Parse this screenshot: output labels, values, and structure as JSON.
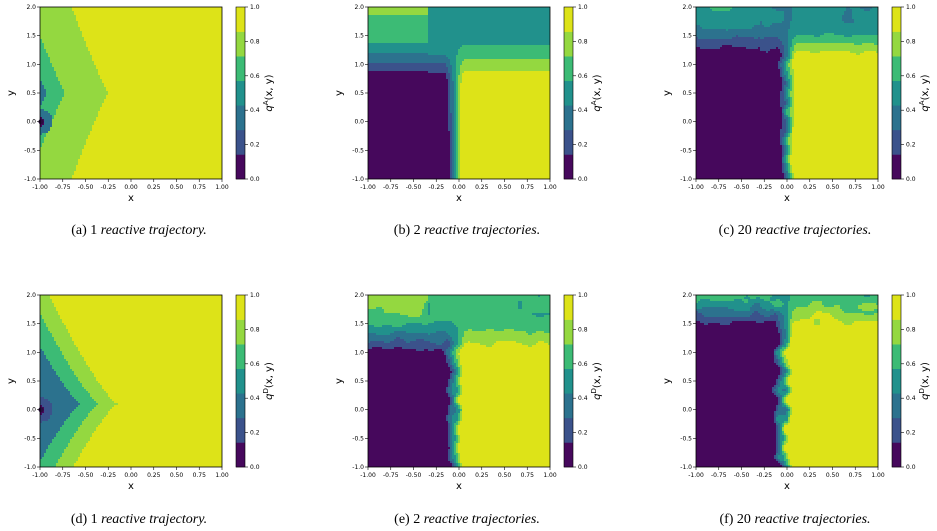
{
  "chart_data": [
    {
      "type": "heatmap",
      "caption_label": "(a)",
      "caption_count": "1",
      "caption_text": "reactive trajectory.",
      "xlabel": "x",
      "ylabel": "y",
      "colorbar_label": "q^A(x, y)",
      "colorbar_sym": "q",
      "colorbar_sup": "A",
      "colorbar_args": "(x, y)",
      "xlim": [
        -1.0,
        1.0
      ],
      "ylim": [
        -1.0,
        2.0
      ],
      "xticks": [
        "-1.00",
        "-0.75",
        "-0.50",
        "-0.25",
        "0.00",
        "0.25",
        "0.50",
        "0.75",
        "1.00"
      ],
      "yticks": [
        "-1.0",
        "-0.5",
        "0.0",
        "0.5",
        "1.0",
        "1.5",
        "2.0"
      ],
      "colorbar_ticks": [
        "0.0",
        "0.2",
        "0.4",
        "0.6",
        "0.8",
        "1.0"
      ],
      "colormap": "viridis",
      "marker": [
        -1.0,
        0.0
      ],
      "field": {
        "kind": "left_arrow",
        "cx": -0.05,
        "cy": 0.5,
        "widen": 0.28,
        "shape": 0.9,
        "tip_x": -1.0,
        "tip_y": 0.0,
        "bands": [
          {
            "x": -0.92,
            "level": 0.4
          },
          {
            "x": -0.72,
            "level": 0.6
          },
          {
            "x": -0.25,
            "level": 0.8
          }
        ]
      }
    },
    {
      "type": "heatmap",
      "caption_label": "(b)",
      "caption_count": "2",
      "caption_text": "reactive trajectories.",
      "xlabel": "x",
      "ylabel": "y",
      "colorbar_label": "q^A(x, y)",
      "colorbar_sym": "q",
      "colorbar_sup": "A",
      "colorbar_args": "(x, y)",
      "xlim": [
        -1.0,
        1.0
      ],
      "ylim": [
        -1.0,
        2.0
      ],
      "xticks": [
        "-1.00",
        "-0.75",
        "-0.50",
        "-0.25",
        "0.00",
        "0.25",
        "0.50",
        "0.75",
        "1.00"
      ],
      "yticks": [
        "-1.0",
        "-0.5",
        "0.0",
        "0.5",
        "1.0",
        "1.5",
        "2.0"
      ],
      "colorbar_ticks": [
        "0.0",
        "0.2",
        "0.4",
        "0.6",
        "0.8",
        "1.0"
      ],
      "colormap": "viridis",
      "field": {
        "kind": "y_split",
        "stem_x": -0.05,
        "stem_top": 0.7,
        "top_level": 0.55,
        "noise": 0.0
      }
    },
    {
      "type": "heatmap",
      "caption_label": "(c)",
      "caption_count": "20",
      "caption_text": "reactive trajectories.",
      "xlabel": "x",
      "ylabel": "y",
      "colorbar_label": "q^A(x, y)",
      "colorbar_sym": "q",
      "colorbar_sup": "A",
      "colorbar_args": "(x, y)",
      "xlim": [
        -1.0,
        1.0
      ],
      "ylim": [
        -1.0,
        2.0
      ],
      "xticks": [
        "-1.00",
        "-0.75",
        "-0.50",
        "-0.25",
        "0.00",
        "0.25",
        "0.50",
        "0.75",
        "1.00"
      ],
      "yticks": [
        "-1.0",
        "-0.5",
        "0.0",
        "0.5",
        "1.0",
        "1.5",
        "2.0"
      ],
      "colorbar_ticks": [
        "0.0",
        "0.2",
        "0.4",
        "0.6",
        "0.8",
        "1.0"
      ],
      "colormap": "viridis",
      "field": {
        "kind": "y_split",
        "stem_x": 0.0,
        "stem_top": 1.05,
        "top_level": 0.45,
        "noise": 0.04
      }
    },
    {
      "type": "heatmap",
      "caption_label": "(d)",
      "caption_count": "1",
      "caption_text": "reactive trajectory.",
      "xlabel": "x",
      "ylabel": "y",
      "colorbar_label": "q^D(x, y)",
      "colorbar_sym": "q",
      "colorbar_sup": "D",
      "colorbar_args": "(x, y)",
      "xlim": [
        -1.0,
        1.0
      ],
      "ylim": [
        -1.0,
        2.0
      ],
      "xticks": [
        "-1.00",
        "-0.75",
        "-0.50",
        "-0.25",
        "0.00",
        "0.25",
        "0.50",
        "0.75",
        "1.00"
      ],
      "yticks": [
        "-1.0",
        "-0.5",
        "0.0",
        "0.5",
        "1.0",
        "1.5",
        "2.0"
      ],
      "colorbar_ticks": [
        "0.0",
        "0.2",
        "0.4",
        "0.6",
        "0.8",
        "1.0"
      ],
      "colormap": "viridis",
      "marker": [
        -1.0,
        0.0
      ],
      "field": {
        "kind": "left_arrow",
        "cx": 0.1,
        "cy": 0.1,
        "widen": 0.45,
        "shape": 0.8,
        "tip_x": -1.0,
        "tip_y": 0.0,
        "bands": [
          {
            "x": -0.95,
            "level": 0.2
          },
          {
            "x": -0.55,
            "level": 0.4
          },
          {
            "x": -0.35,
            "level": 0.6
          },
          {
            "x": -0.15,
            "level": 0.8
          }
        ]
      }
    },
    {
      "type": "heatmap",
      "caption_label": "(e)",
      "caption_count": "2",
      "caption_text": "reactive trajectories.",
      "xlabel": "x",
      "ylabel": "y",
      "colorbar_label": "q^D(x, y)",
      "colorbar_sym": "q",
      "colorbar_sup": "D",
      "colorbar_args": "(x, y)",
      "xlim": [
        -1.0,
        1.0
      ],
      "ylim": [
        -1.0,
        2.0
      ],
      "xticks": [
        "-1.00",
        "-0.75",
        "-0.50",
        "-0.25",
        "0.00",
        "0.25",
        "0.50",
        "0.75",
        "1.00"
      ],
      "yticks": [
        "-1.0",
        "-0.5",
        "0.0",
        "0.5",
        "1.0",
        "1.5",
        "2.0"
      ],
      "colorbar_ticks": [
        "0.0",
        "0.2",
        "0.4",
        "0.6",
        "0.8",
        "1.0"
      ],
      "colormap": "viridis",
      "field": {
        "kind": "y_split",
        "stem_x": -0.05,
        "stem_top": 0.9,
        "top_level": 0.62,
        "noise": 0.05
      }
    },
    {
      "type": "heatmap",
      "caption_label": "(f)",
      "caption_count": "20",
      "caption_text": "reactive trajectories.",
      "xlabel": "x",
      "ylabel": "y",
      "colorbar_label": "q^D(x, y)",
      "colorbar_sym": "q",
      "colorbar_sup": "D",
      "colorbar_args": "(x, y)",
      "xlim": [
        -1.0,
        1.0
      ],
      "ylim": [
        -1.0,
        2.0
      ],
      "xticks": [
        "-1.00",
        "-0.75",
        "-0.50",
        "-0.25",
        "0.00",
        "0.25",
        "0.50",
        "0.75",
        "1.00"
      ],
      "yticks": [
        "-1.0",
        "-0.5",
        "0.0",
        "0.5",
        "1.0",
        "1.5",
        "2.0"
      ],
      "colorbar_ticks": [
        "0.0",
        "0.2",
        "0.4",
        "0.6",
        "0.8",
        "1.0"
      ],
      "colormap": "viridis",
      "field": {
        "kind": "y_split",
        "stem_x": -0.05,
        "stem_top": 1.35,
        "top_level": 0.62,
        "noise": 0.08
      }
    }
  ],
  "colors": {
    "viridis_levels": [
      "#440154",
      "#414487",
      "#2a788e",
      "#22a884",
      "#7ad151",
      "#fde725"
    ],
    "contour_bands": [
      "#46085c",
      "#3b528b",
      "#2c728e",
      "#21918c",
      "#3cbb75",
      "#94d840",
      "#dde318"
    ]
  }
}
